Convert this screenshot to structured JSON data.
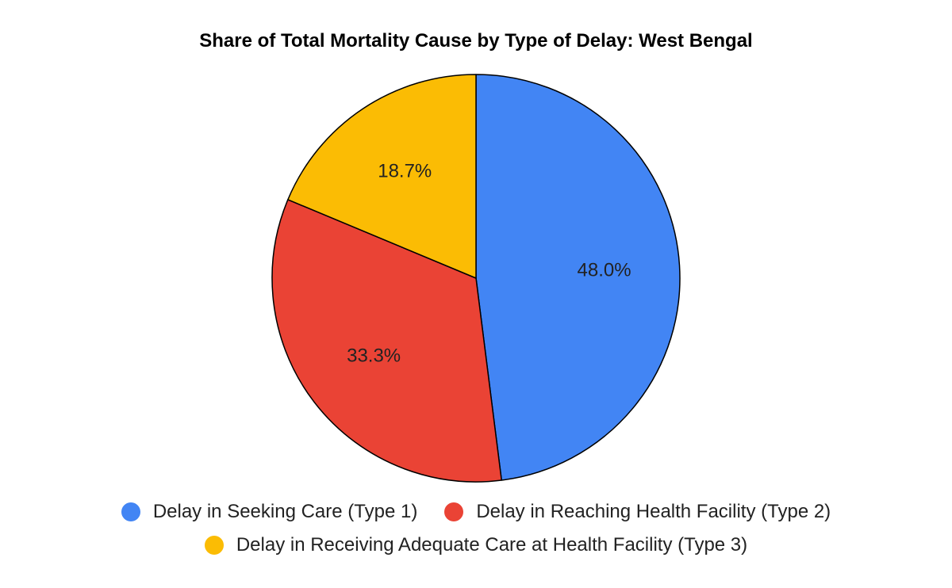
{
  "chart_data": {
    "type": "pie",
    "title": "Share of Total Mortality Cause by Type of Delay: West Bengal",
    "slices": [
      {
        "name": "Delay in Seeking Care (Type 1)",
        "value": 48.0,
        "label": "48.0%",
        "color": "#4285F4"
      },
      {
        "name": "Delay in Reaching Health Facility (Type 2)",
        "value": 33.3,
        "label": "33.3%",
        "color": "#EA4335"
      },
      {
        "name": "Delay in Receiving Adequate Care at Health Facility (Type 3)",
        "value": 18.7,
        "label": "18.7%",
        "color": "#FBBC04"
      }
    ],
    "legend_position": "bottom"
  }
}
